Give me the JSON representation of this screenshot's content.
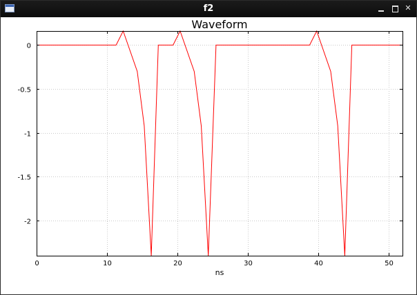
{
  "window": {
    "title": "f2",
    "icon": "app-window-icon",
    "controls": {
      "minimize_icon": "minimize-icon",
      "maximize_icon": "maximize-icon",
      "close_icon": "close-icon",
      "close_glyph": "✕"
    }
  },
  "chart_data": {
    "type": "line",
    "title": "Waveform",
    "xlabel": "ns",
    "ylabel": "",
    "xlim": [
      0,
      52
    ],
    "ylim": [
      -2.4,
      0.16
    ],
    "xticks": [
      0,
      10,
      20,
      30,
      40,
      50
    ],
    "yticks": [
      0,
      -0.5,
      -1,
      -1.5,
      -2
    ],
    "xtick_labels": [
      "0",
      "10",
      "20",
      "30",
      "40",
      "50"
    ],
    "ytick_labels": [
      "0",
      "-0.5",
      "-1",
      "-1.5",
      "-2"
    ],
    "grid": true,
    "grid_style": "dotted",
    "series": [
      {
        "color": "#ff0000",
        "x": [
          0,
          11.3,
          12.3,
          14.3,
          15.3,
          16.3,
          17.3,
          19.4,
          20.4,
          22.4,
          23.4,
          24.4,
          25.5,
          38.8,
          39.8,
          41.8,
          42.8,
          43.8,
          44.8,
          52
        ],
        "y": [
          0,
          0,
          0.16,
          -0.3,
          -0.92,
          -2.4,
          0,
          0,
          0.16,
          -0.3,
          -0.92,
          -2.4,
          0,
          0,
          0.16,
          -0.3,
          -0.92,
          -2.4,
          0,
          0
        ]
      }
    ]
  }
}
